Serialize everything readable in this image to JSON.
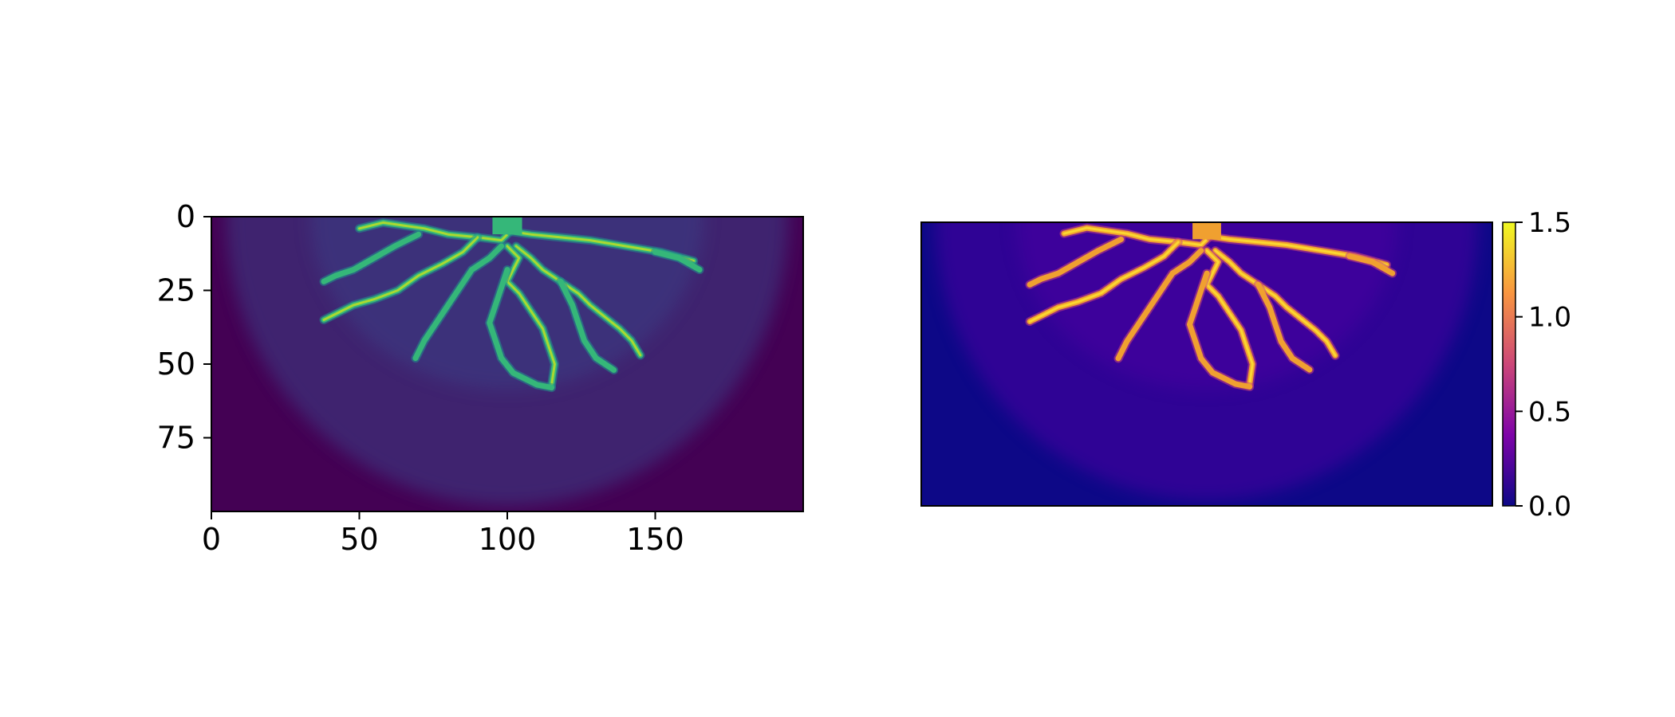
{
  "chart_data": [
    {
      "type": "heatmap",
      "title": "",
      "xlabel": "",
      "ylabel": "",
      "colormap": "viridis",
      "grid": false,
      "xlim": [
        0,
        200
      ],
      "ylim": [
        100,
        0
      ],
      "x_ticks": [
        0,
        50,
        100,
        150
      ],
      "x_tick_labels": [
        "0",
        "50",
        "100",
        "150"
      ],
      "y_ticks": [
        0,
        25,
        50,
        75
      ],
      "y_tick_labels": [
        "0",
        "25",
        "50",
        "75"
      ],
      "inlet": {
        "x": [
          95,
          105
        ],
        "y": 0
      },
      "channels": [
        {
          "x": [
            100,
            101,
            98,
            90,
            80,
            72,
            65,
            58,
            50
          ],
          "y": [
            0,
            5,
            8,
            7,
            6,
            4,
            3,
            2,
            4
          ]
        },
        {
          "x": [
            90,
            85,
            78,
            70,
            63,
            55,
            48,
            42,
            38
          ],
          "y": [
            7,
            12,
            16,
            20,
            25,
            28,
            30,
            33,
            35
          ]
        },
        {
          "x": [
            101,
            108,
            118,
            128,
            140,
            152,
            163
          ],
          "y": [
            5,
            6,
            7,
            8,
            10,
            12,
            15
          ]
        },
        {
          "x": [
            103,
            108,
            112,
            118,
            124,
            128,
            133,
            138,
            142,
            145
          ],
          "y": [
            10,
            14,
            18,
            22,
            26,
            30,
            34,
            38,
            42,
            47
          ]
        },
        {
          "x": [
            100,
            104,
            102,
            100,
            104,
            108,
            112,
            114,
            116,
            115
          ],
          "y": [
            10,
            14,
            18,
            22,
            26,
            32,
            38,
            44,
            50,
            57
          ]
        },
        {
          "x": [
            98,
            94,
            88,
            84,
            80,
            76,
            72,
            69
          ],
          "y": [
            10,
            14,
            18,
            24,
            30,
            36,
            42,
            48
          ]
        },
        {
          "x": [
            100,
            98,
            96,
            94,
            96,
            98,
            102,
            106,
            110,
            115
          ],
          "y": [
            18,
            24,
            30,
            36,
            42,
            48,
            53,
            55,
            57,
            58
          ]
        },
        {
          "x": [
            118,
            122,
            124,
            126,
            130,
            136
          ],
          "y": [
            22,
            30,
            36,
            42,
            48,
            52
          ]
        },
        {
          "x": [
            70,
            62,
            55,
            48,
            42,
            38
          ],
          "y": [
            6,
            10,
            14,
            18,
            20,
            22
          ]
        },
        {
          "x": [
            150,
            158,
            165
          ],
          "y": [
            12,
            14,
            18
          ]
        }
      ]
    },
    {
      "type": "heatmap",
      "title": "",
      "xlabel": "",
      "ylabel": "",
      "colormap": "plasma",
      "grid": false,
      "axis_ticks": false,
      "colorbar": {
        "range": [
          0.0,
          1.5
        ],
        "ticks": [
          0.0,
          0.5,
          1.0,
          1.5
        ],
        "tick_labels": [
          "0.0",
          "0.5",
          "1.0",
          "1.5"
        ]
      }
    }
  ],
  "colors": {
    "viridis_background": "#440154",
    "viridis_fan": "#3a3f86",
    "viridis_channel_edge": "#21918c",
    "viridis_channel_mid": "#35b779",
    "viridis_channel_peak": "#bddf26",
    "plasma_background": "#0d0887",
    "plasma_fan": "#4c02a1",
    "plasma_channel_edge": "#cc4778",
    "plasma_channel_mid": "#f0a030",
    "plasma_channel_peak": "#fde030"
  }
}
